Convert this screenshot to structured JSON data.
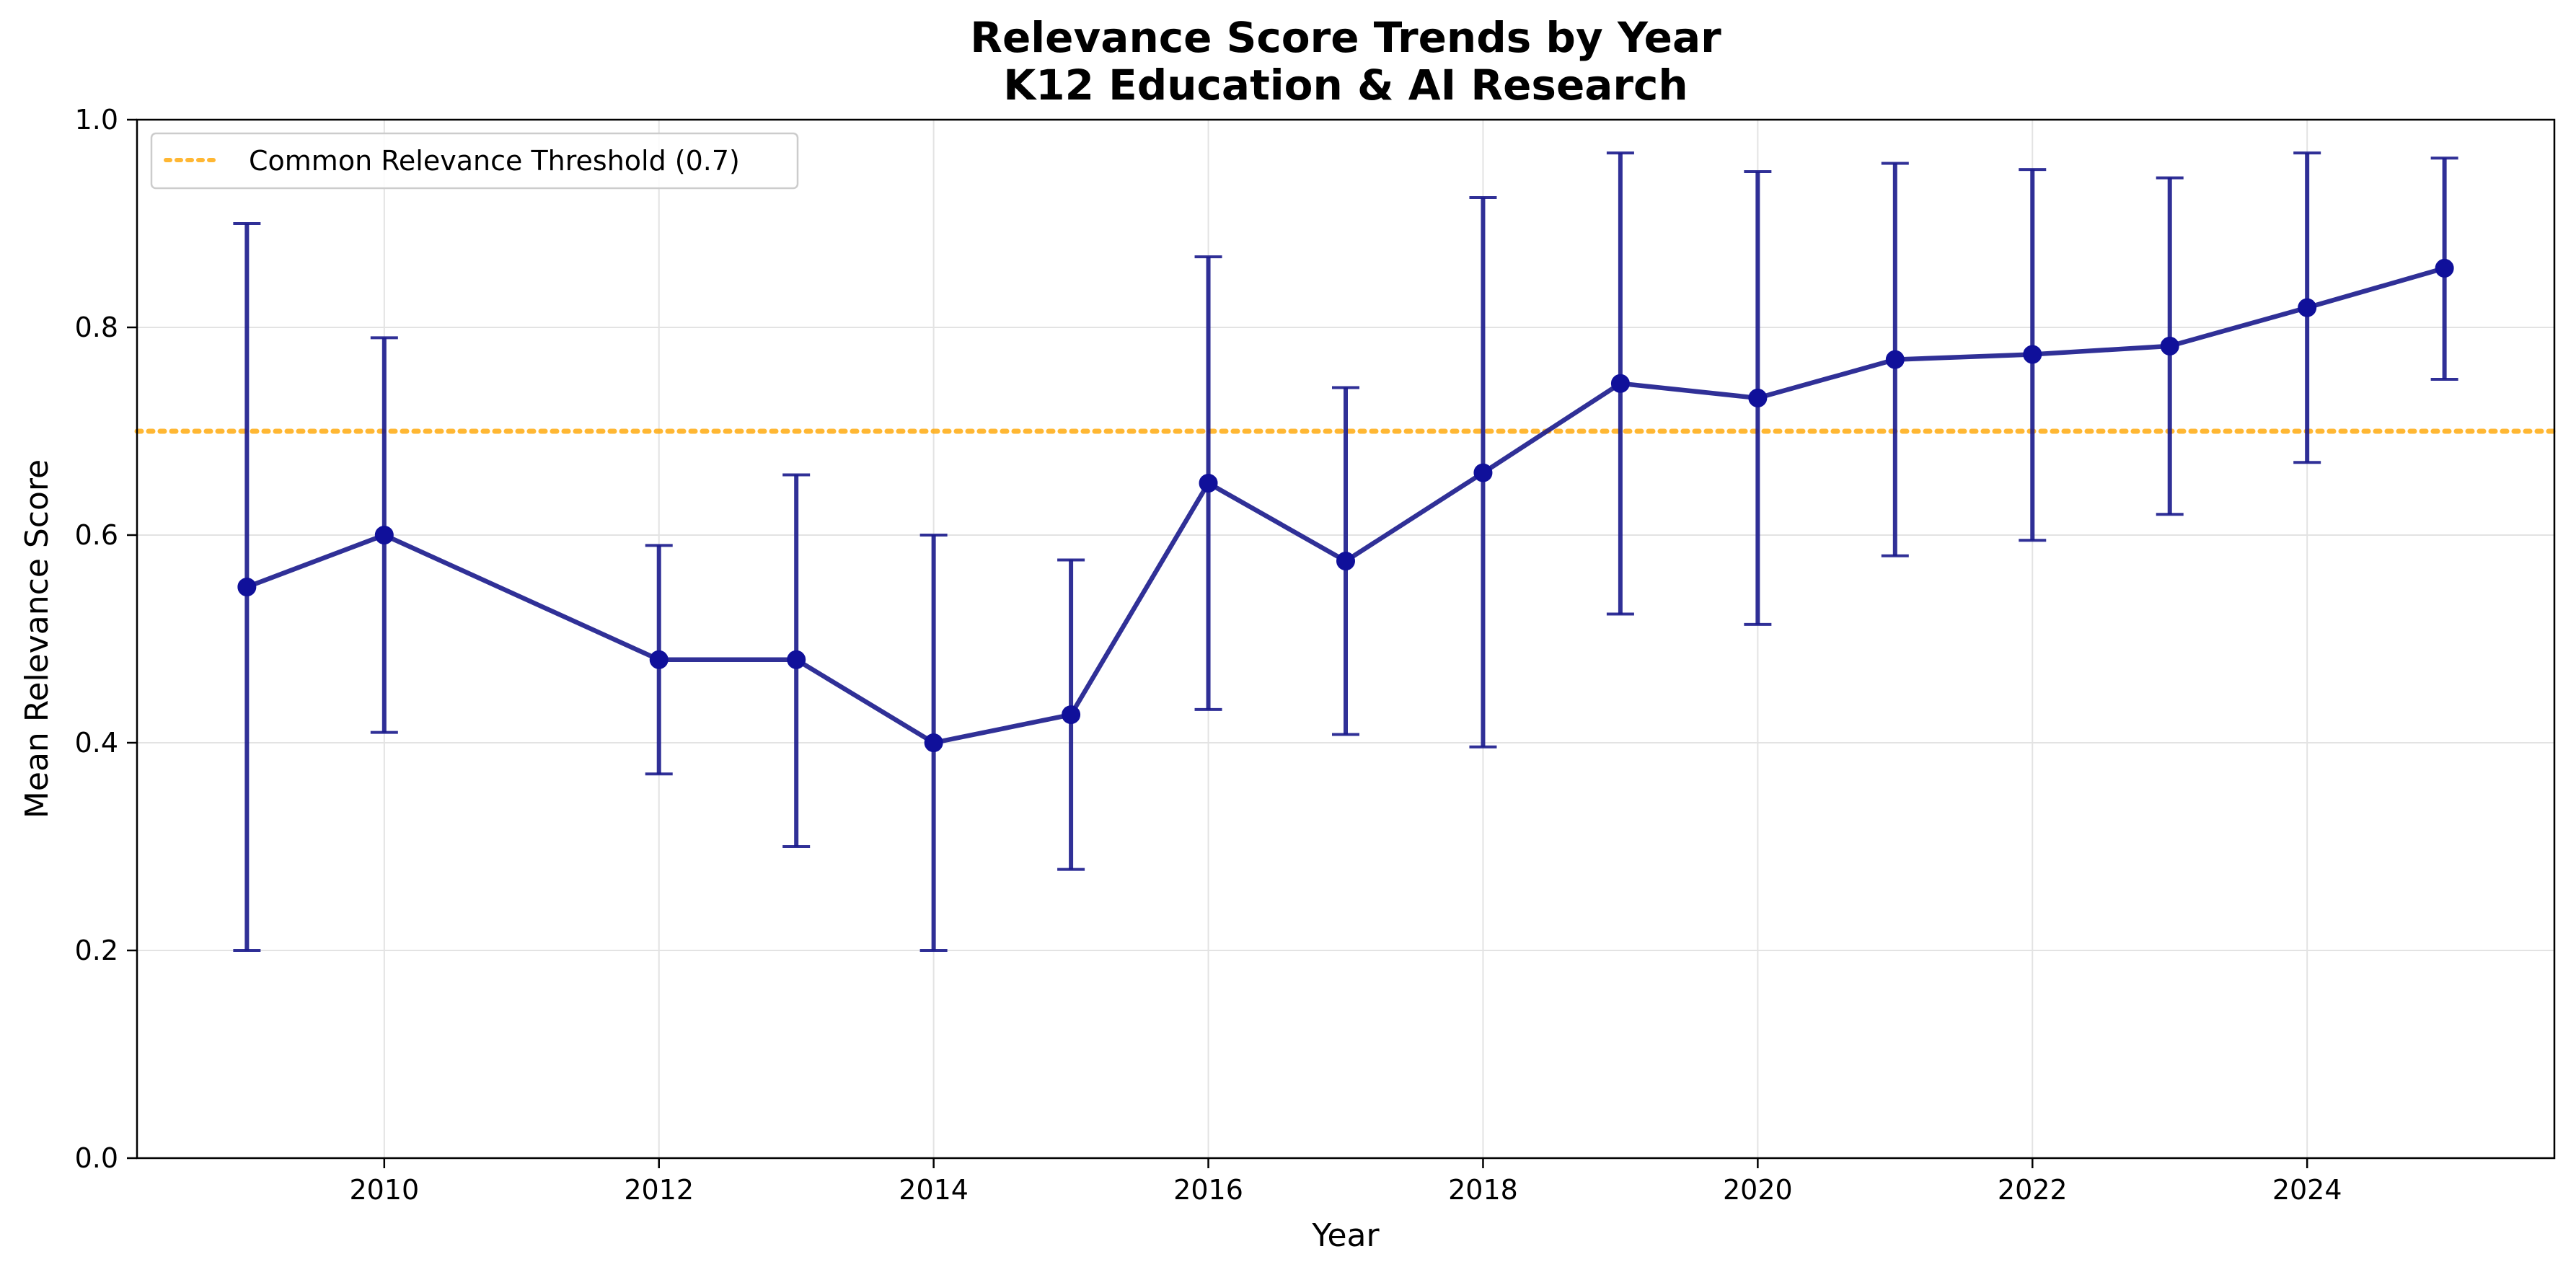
{
  "chart_data": {
    "type": "line",
    "title": "Relevance Score Trends by Year",
    "subtitle": "K12 Education & AI Research",
    "xlabel": "Year",
    "ylabel": "Mean Relevance Score",
    "xlim": [
      2008.2,
      2025.8
    ],
    "ylim": [
      0.0,
      1.0
    ],
    "x_ticks": [
      2010,
      2012,
      2014,
      2016,
      2018,
      2020,
      2022,
      2024
    ],
    "y_ticks": [
      0.0,
      0.2,
      0.4,
      0.6,
      0.8,
      1.0
    ],
    "x_tick_labels": [
      "2010",
      "2012",
      "2014",
      "2016",
      "2018",
      "2020",
      "2022",
      "2024"
    ],
    "y_tick_labels": [
      "0.0",
      "0.2",
      "0.4",
      "0.6",
      "0.8",
      "1.0"
    ],
    "grid": true,
    "legend_position": "upper-left",
    "series": [
      {
        "x": [
          2009,
          2010,
          2012,
          2013,
          2014,
          2015,
          2016,
          2017,
          2018,
          2019,
          2020,
          2021,
          2022,
          2023,
          2024,
          2025
        ],
        "values": [
          0.55,
          0.6,
          0.48,
          0.48,
          0.4,
          0.427,
          0.65,
          0.575,
          0.66,
          0.746,
          0.732,
          0.769,
          0.774,
          0.782,
          0.819,
          0.857
        ],
        "error_low": [
          0.2,
          0.41,
          0.37,
          0.3,
          0.2,
          0.278,
          0.432,
          0.408,
          0.396,
          0.524,
          0.514,
          0.58,
          0.595,
          0.62,
          0.67,
          0.75
        ],
        "error_high": [
          0.9,
          0.79,
          0.59,
          0.658,
          0.6,
          0.576,
          0.868,
          0.742,
          0.925,
          0.968,
          0.95,
          0.958,
          0.952,
          0.944,
          0.968,
          0.963
        ],
        "color": "#1a1a8c"
      }
    ],
    "reference_lines": [
      {
        "name": "Common Relevance Threshold (0.7)",
        "y": 0.7,
        "color": "#ffa500",
        "style": "dotted"
      }
    ]
  },
  "legend": {
    "threshold_label": "Common Relevance Threshold (0.7)"
  }
}
